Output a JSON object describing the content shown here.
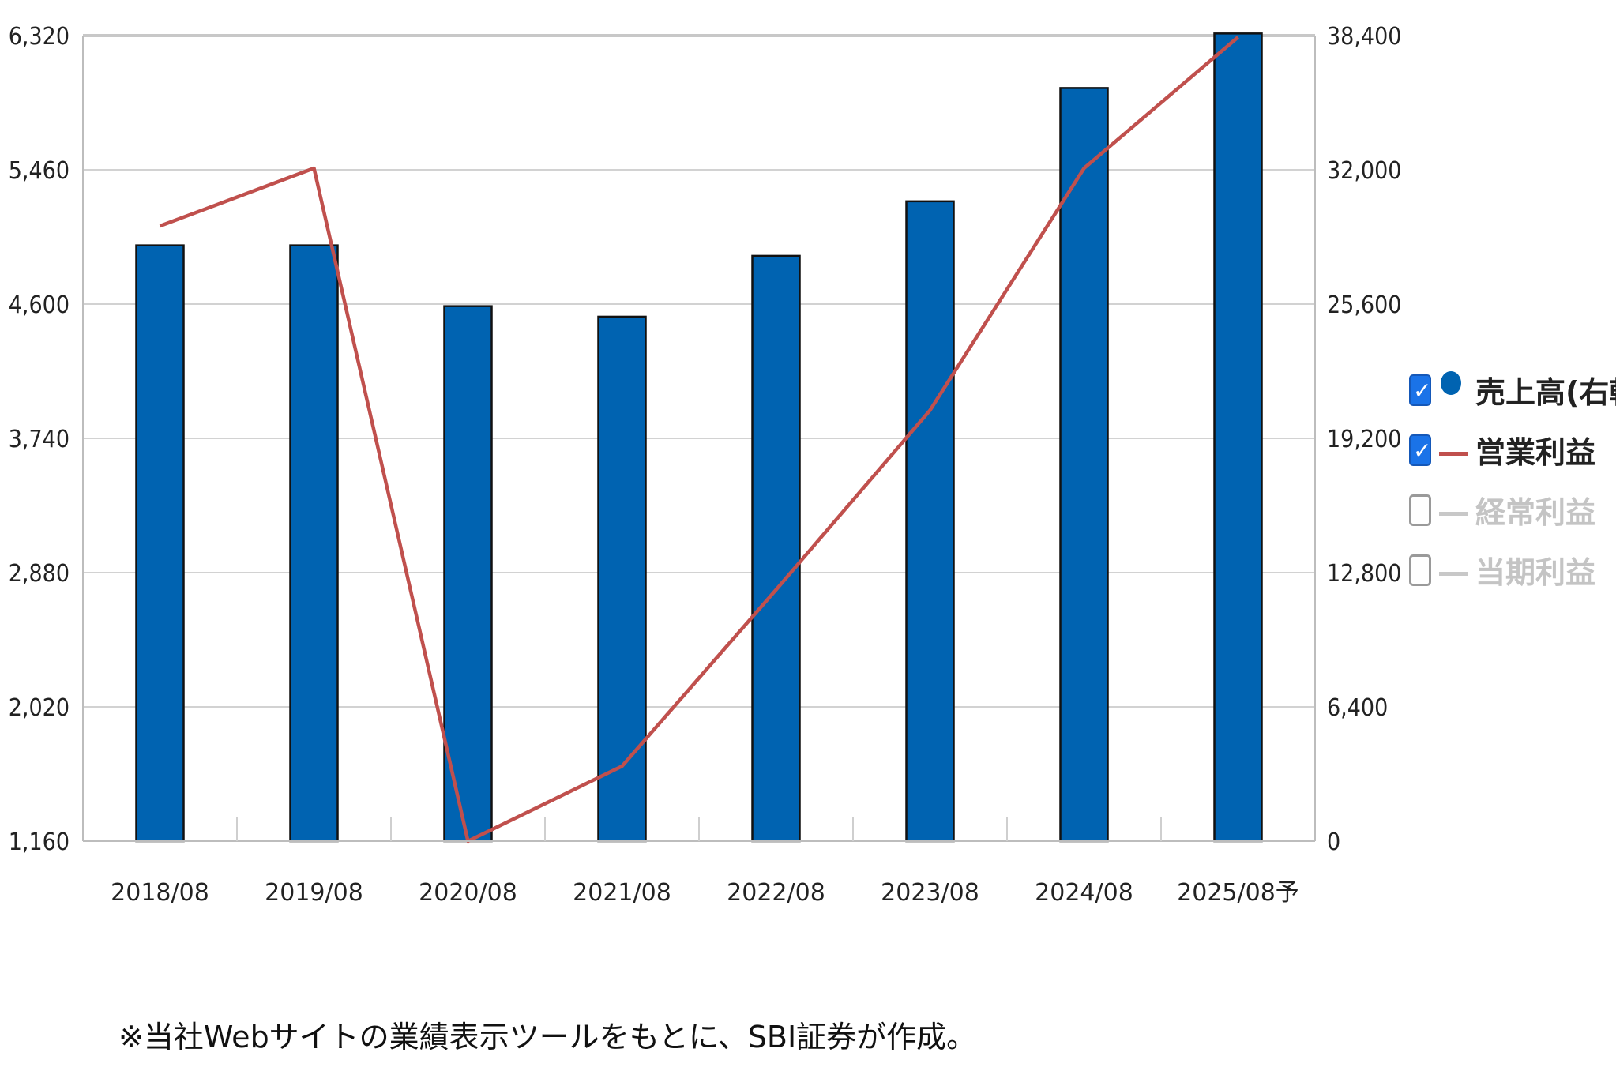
{
  "chart_data": {
    "type": "bar",
    "categories": [
      "2018/08",
      "2019/08",
      "2020/08",
      "2021/08",
      "2022/08",
      "2023/08",
      "2024/08",
      "2025/08予"
    ],
    "series": [
      {
        "name": "売上高(右軸)",
        "type": "bar",
        "axis": "right",
        "color": "#0063b1",
        "values": [
          28400,
          28400,
          25500,
          25000,
          27900,
          30500,
          35900,
          38500
        ]
      },
      {
        "name": "営業利益",
        "type": "line",
        "axis": "left",
        "color": "#c0504d",
        "values": [
          5100,
          5470,
          1160,
          1640,
          2770,
          3920,
          5470,
          6310
        ]
      }
    ],
    "y_left": {
      "ylim": [
        1160,
        6320
      ],
      "ticks": [
        "1,160",
        "2,020",
        "2,880",
        "3,740",
        "4,600",
        "5,460",
        "6,320"
      ],
      "tick_values": [
        1160,
        2020,
        2880,
        3740,
        4600,
        5460,
        6320
      ]
    },
    "y_right": {
      "ylim": [
        0,
        38400
      ],
      "ticks": [
        "0",
        "6,400",
        "12,800",
        "19,200",
        "25,600",
        "32,000",
        "38,400"
      ],
      "tick_values": [
        0,
        6400,
        12800,
        19200,
        25600,
        32000,
        38400
      ]
    },
    "grid": true,
    "legend_position": "right",
    "legend": [
      {
        "label": "売上高(右軸)",
        "checked": true,
        "marker": "dot",
        "color": "#0063b1"
      },
      {
        "label": "営業利益",
        "checked": true,
        "marker": "line",
        "color": "#c0504d"
      },
      {
        "label": "経常利益",
        "checked": false,
        "marker": "line",
        "color": "#c8c8c8"
      },
      {
        "label": "当期利益",
        "checked": false,
        "marker": "line",
        "color": "#c8c8c8"
      }
    ]
  },
  "footnote": "※当社Webサイトの業績表示ツールをもとに、SBI証券が作成。"
}
